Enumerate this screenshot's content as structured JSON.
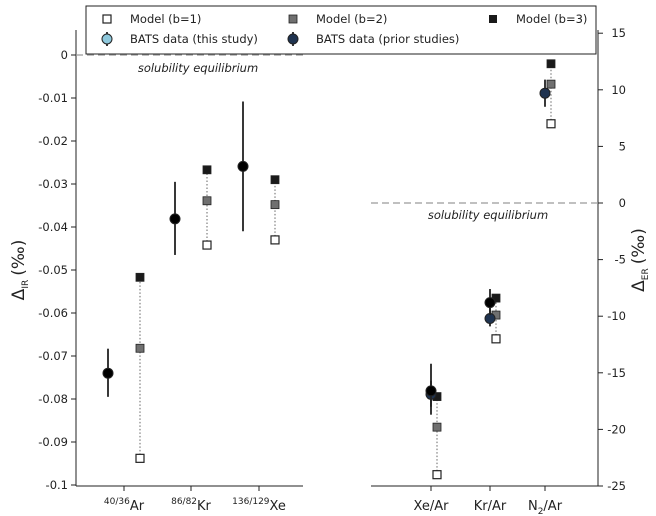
{
  "colors": {
    "model_b1_fill": "#ffffff",
    "model_b2_fill": "#707070",
    "model_b3_fill": "#1a1a1a",
    "bats_this_study": "#8ec8dc",
    "bats_prior": "#1f3350",
    "equilibrium_line": "#9a9a9a"
  },
  "legend": {
    "model_b1": "Model (b=1)",
    "model_b2": "Model (b=2)",
    "model_b3": "Model (b=3)",
    "bats_this": "BATS data (this study)",
    "bats_prior": "BATS data (prior studies)"
  },
  "chart_data": [
    {
      "type": "scatter",
      "panel": "left",
      "ylabel": "Δ",
      "ylabel_sub": "IR",
      "ylabel_unit": "(‰)",
      "ylim": [
        -0.1,
        0.0
      ],
      "yticks": [
        0,
        -0.01,
        -0.02,
        -0.03,
        -0.04,
        -0.05,
        -0.06,
        -0.07,
        -0.08,
        -0.09,
        -0.1
      ],
      "ytick_labels": [
        "0",
        "-0.01",
        "-0.02",
        "-0.03",
        "-0.04",
        "-0.05",
        "-0.06",
        "-0.07",
        "-0.08",
        "-0.09",
        "-0.1"
      ],
      "annotation": "solubility equilibrium",
      "equilibrium_value": 0,
      "categories": [
        {
          "sup": "40/36",
          "base": "Ar"
        },
        {
          "sup": "86/82",
          "base": "Kr"
        },
        {
          "sup": "136/129",
          "base": "Xe"
        }
      ],
      "series": [
        {
          "name": "Model (b=1)",
          "values": [
            -0.0938,
            -0.0442,
            -0.043
          ]
        },
        {
          "name": "Model (b=2)",
          "values": [
            -0.0682,
            -0.0339,
            -0.0348
          ]
        },
        {
          "name": "Model (b=3)",
          "values": [
            -0.0517,
            -0.0267,
            -0.029
          ]
        },
        {
          "name": "BATS data (this study)",
          "values": [
            -0.074,
            -0.0381,
            -0.0259
          ],
          "err_low": [
            -0.0795,
            -0.0465,
            -0.041
          ],
          "err_high": [
            -0.0683,
            -0.0295,
            -0.0108
          ]
        }
      ]
    },
    {
      "type": "scatter",
      "panel": "right",
      "ylabel": "Δ",
      "ylabel_sub": "ER",
      "ylabel_unit": "(‰)",
      "ylim": [
        -25,
        15
      ],
      "yticks": [
        15,
        10,
        5,
        0,
        -5,
        -10,
        -15,
        -20,
        -25
      ],
      "ytick_labels": [
        "15",
        "10",
        "5",
        "0",
        "-5",
        "-10",
        "-15",
        "-20",
        "-25"
      ],
      "annotation": "solubility equilibrium",
      "equilibrium_value": 0,
      "categories": [
        {
          "label": "Xe/Ar"
        },
        {
          "label": "Kr/Ar"
        },
        {
          "base": "N",
          "sub": "2",
          "rest": "/Ar"
        }
      ],
      "series": [
        {
          "name": "Model (b=1)",
          "values": [
            -24.0,
            -12.0,
            7.0
          ]
        },
        {
          "name": "Model (b=2)",
          "values": [
            -19.8,
            -9.9,
            10.5
          ]
        },
        {
          "name": "Model (b=3)",
          "values": [
            -17.1,
            -8.4,
            12.3
          ]
        },
        {
          "name": "BATS data (this study)",
          "values": [
            -16.6,
            -8.8,
            null
          ],
          "err_low": [
            -18.7,
            -9.9,
            null
          ],
          "err_high": [
            -14.2,
            -7.6,
            null
          ]
        },
        {
          "name": "BATS data (prior studies)",
          "values": [
            -16.9,
            -10.2,
            9.7
          ],
          "err_low": [
            -18.0,
            -10.9,
            8.5
          ],
          "err_high": [
            -15.7,
            -9.2,
            10.9
          ]
        }
      ]
    }
  ]
}
